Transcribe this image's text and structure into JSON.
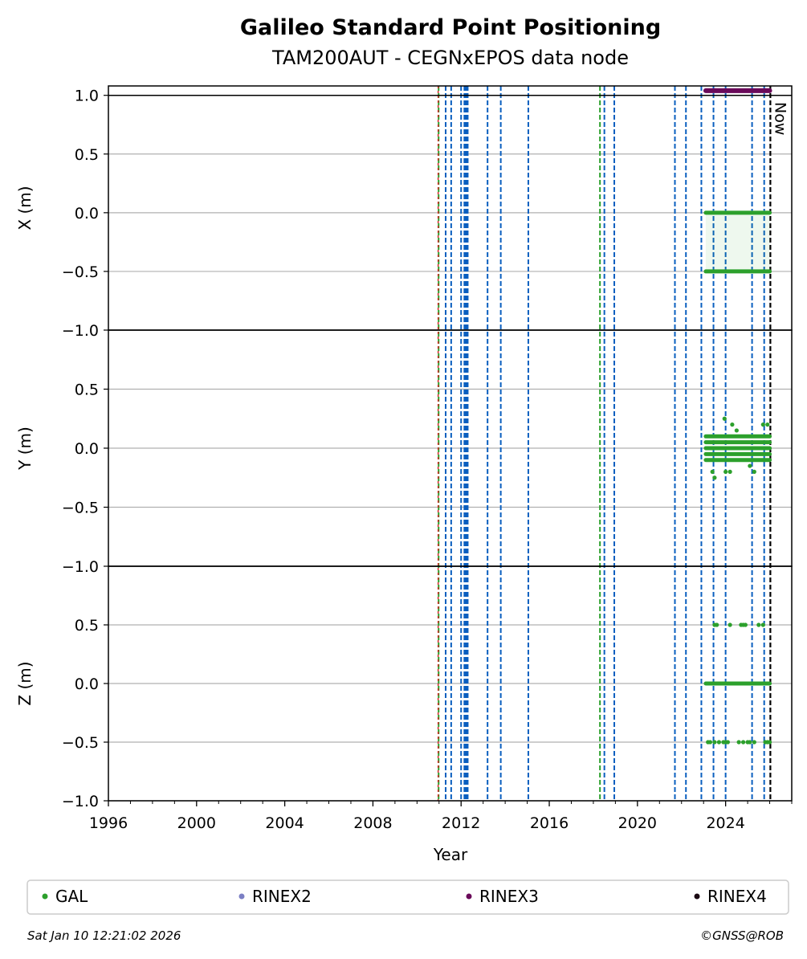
{
  "chart_data": {
    "type": "scatter",
    "title": "Galileo Standard Point Positioning",
    "subtitle": "TAM200AUT - CEGNxEPOS data node",
    "xlabel": "Year",
    "xlim": [
      1996,
      2027
    ],
    "x_ticks": [
      "1996",
      "2000",
      "2004",
      "2008",
      "2012",
      "2016",
      "2020",
      "2024"
    ],
    "grid": true,
    "now_label": "Now",
    "now_x": 2026.03,
    "panels": [
      {
        "ylabel": "X (m)",
        "ylim": [
          -1.0,
          1.08
        ],
        "y_ticks": [
          {
            "v": 1.0,
            "label": "1.0"
          },
          {
            "v": 0.5,
            "label": "0.5"
          },
          {
            "v": 0.0,
            "label": "0.0"
          },
          {
            "v": -0.5,
            "label": "−0.5"
          },
          {
            "v": -1.0,
            "label": "−1.0"
          }
        ],
        "bands": [
          {
            "y": 0.0,
            "x_start": 2023.1,
            "x_end": 2026.0,
            "jitter": 0
          },
          {
            "y": -0.5,
            "x_start": 2023.1,
            "x_end": 2026.0,
            "jitter": 0
          }
        ],
        "outliers": []
      },
      {
        "ylabel": "Y (m)",
        "ylim": [
          -1.0,
          1.0
        ],
        "y_ticks": [
          {
            "v": 0.5,
            "label": "0.5"
          },
          {
            "v": 0.0,
            "label": "0.0"
          },
          {
            "v": -0.5,
            "label": "−0.5"
          },
          {
            "v": -1.0,
            "label": "−1.0"
          }
        ],
        "bands": [
          {
            "y": 0.1,
            "x_start": 2023.1,
            "x_end": 2026.0,
            "jitter": 0
          },
          {
            "y": 0.05,
            "x_start": 2023.1,
            "x_end": 2026.0,
            "jitter": 0
          },
          {
            "y": 0.0,
            "x_start": 2023.1,
            "x_end": 2026.0,
            "jitter": 0
          },
          {
            "y": -0.05,
            "x_start": 2023.1,
            "x_end": 2026.0,
            "jitter": 0
          },
          {
            "y": -0.1,
            "x_start": 2023.1,
            "x_end": 2026.0,
            "jitter": 0
          }
        ],
        "outliers": [
          {
            "x": 2023.95,
            "y": 0.25
          },
          {
            "x": 2024.3,
            "y": 0.2
          },
          {
            "x": 2025.7,
            "y": 0.2
          },
          {
            "x": 2025.9,
            "y": 0.2
          },
          {
            "x": 2023.5,
            "y": -0.25
          },
          {
            "x": 2023.4,
            "y": -0.2
          },
          {
            "x": 2024.0,
            "y": -0.2
          },
          {
            "x": 2024.2,
            "y": -0.2
          },
          {
            "x": 2025.3,
            "y": -0.2
          },
          {
            "x": 2024.5,
            "y": 0.15
          },
          {
            "x": 2025.1,
            "y": -0.15
          }
        ]
      },
      {
        "ylabel": "Z (m)",
        "ylim": [
          -1.0,
          1.0
        ],
        "y_ticks": [
          {
            "v": 0.5,
            "label": "0.5"
          },
          {
            "v": 0.0,
            "label": "0.0"
          },
          {
            "v": -0.5,
            "label": "−0.5"
          },
          {
            "v": -1.0,
            "label": "−1.0"
          }
        ],
        "bands": [
          {
            "y": 0.0,
            "x_start": 2023.1,
            "x_end": 2026.0,
            "jitter": 0
          }
        ],
        "outliers": [
          {
            "x": 2023.5,
            "y": 0.5
          },
          {
            "x": 2023.6,
            "y": 0.5
          },
          {
            "x": 2024.2,
            "y": 0.5
          },
          {
            "x": 2024.7,
            "y": 0.5
          },
          {
            "x": 2024.8,
            "y": 0.5
          },
          {
            "x": 2024.9,
            "y": 0.5
          },
          {
            "x": 2025.5,
            "y": 0.5
          },
          {
            "x": 2025.7,
            "y": 0.5
          },
          {
            "x": 2023.2,
            "y": -0.5
          },
          {
            "x": 2023.3,
            "y": -0.5
          },
          {
            "x": 2023.5,
            "y": -0.5
          },
          {
            "x": 2023.7,
            "y": -0.5
          },
          {
            "x": 2023.9,
            "y": -0.5
          },
          {
            "x": 2024.0,
            "y": -0.5
          },
          {
            "x": 2024.1,
            "y": -0.5
          },
          {
            "x": 2024.6,
            "y": -0.5
          },
          {
            "x": 2024.8,
            "y": -0.5
          },
          {
            "x": 2025.0,
            "y": -0.5
          },
          {
            "x": 2025.1,
            "y": -0.5
          },
          {
            "x": 2025.3,
            "y": -0.5
          },
          {
            "x": 2025.8,
            "y": -0.5
          },
          {
            "x": 2025.9,
            "y": -0.5
          },
          {
            "x": 2026.0,
            "y": -0.5
          }
        ]
      }
    ],
    "rinex3_track": {
      "y": 1.04,
      "x_start": 2023.1,
      "x_end": 2026.0,
      "panel": 0
    },
    "event_lines_blue": [
      2011.3,
      2011.55,
      2012.0,
      2012.15,
      2012.2,
      2012.25,
      2012.3,
      2013.2,
      2013.8,
      2015.05,
      2018.5,
      2018.95,
      2021.7,
      2022.2,
      2022.9,
      2023.45,
      2024.0,
      2025.2,
      2025.75
    ],
    "event_lines_green": [
      2010.98,
      2018.3
    ],
    "event_lines_red": [
      2010.96
    ],
    "colors": {
      "gal": "#2ca02c",
      "rinex2": "#7b7fc4",
      "rinex3": "#6a0a5a",
      "rinex4": "#1a0a12",
      "event_blue": "#0a5fbf",
      "event_green": "#2ca02c",
      "event_red": "#d62728",
      "grid": "#b0b0b0"
    },
    "legend": {
      "placement": "bottom",
      "entries": [
        {
          "label": "GAL",
          "color": "#2ca02c"
        },
        {
          "label": "RINEX2",
          "color": "#7b7fc4"
        },
        {
          "label": "RINEX3",
          "color": "#6a0a5a"
        },
        {
          "label": "RINEX4",
          "color": "#1a0a12"
        }
      ]
    }
  },
  "footer": {
    "timestamp": "Sat Jan 10 12:21:02 2026",
    "copyright": "©GNSS@ROB"
  }
}
